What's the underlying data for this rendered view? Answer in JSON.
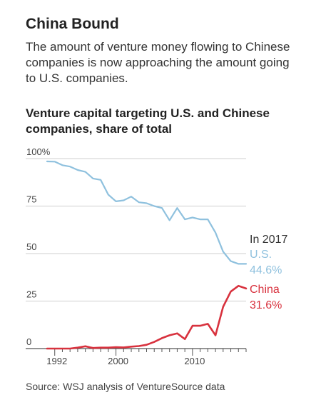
{
  "header": {
    "title": "China Bound",
    "subtitle": "The amount of venture money flowing to Chinese companies is now approaching the amount going to U.S. companies."
  },
  "chart_data": {
    "type": "line",
    "title": "Venture capital targeting U.S. and Chinese companies, share of total",
    "xlabel": "",
    "ylabel": "",
    "ylim": [
      0,
      100
    ],
    "yticks": [
      "100%",
      "75",
      "50",
      "25",
      "0"
    ],
    "ytick_values": [
      100,
      75,
      50,
      25,
      0
    ],
    "xticks": [
      "1992",
      "2000",
      "2010"
    ],
    "xtick_values": [
      1992,
      2000,
      2010
    ],
    "xlim": [
      1991,
      2017
    ],
    "grid": true,
    "x": [
      1991,
      1992,
      1993,
      1994,
      1995,
      1996,
      1997,
      1998,
      1999,
      2000,
      2001,
      2002,
      2003,
      2004,
      2005,
      2006,
      2007,
      2008,
      2009,
      2010,
      2011,
      2012,
      2013,
      2014,
      2015,
      2016,
      2017
    ],
    "series": [
      {
        "name": "U.S.",
        "color": "#8fc1de",
        "values": [
          98.5,
          98.4,
          96.5,
          95.8,
          94,
          93,
          89.5,
          88.8,
          81,
          77.5,
          78,
          80,
          77,
          76.5,
          75,
          74,
          67.5,
          74,
          68,
          69,
          68,
          68,
          61,
          51,
          46,
          44.6,
          44.6
        ]
      },
      {
        "name": "China",
        "color": "#d8323e",
        "values": [
          0,
          0,
          0,
          0,
          0.5,
          1.2,
          0.3,
          0.5,
          0.5,
          0.7,
          0.6,
          1,
          1.3,
          2,
          3.5,
          5.5,
          7,
          8,
          5,
          12,
          12,
          13,
          7,
          22,
          30,
          33,
          31.6
        ]
      }
    ],
    "annotations": {
      "year_label": "In 2017",
      "us_label": "U.S.",
      "us_value": "44.6%",
      "china_label": "China",
      "china_value": "31.6%"
    }
  },
  "footer": {
    "source": "Source: WSJ analysis of VentureSource data"
  }
}
